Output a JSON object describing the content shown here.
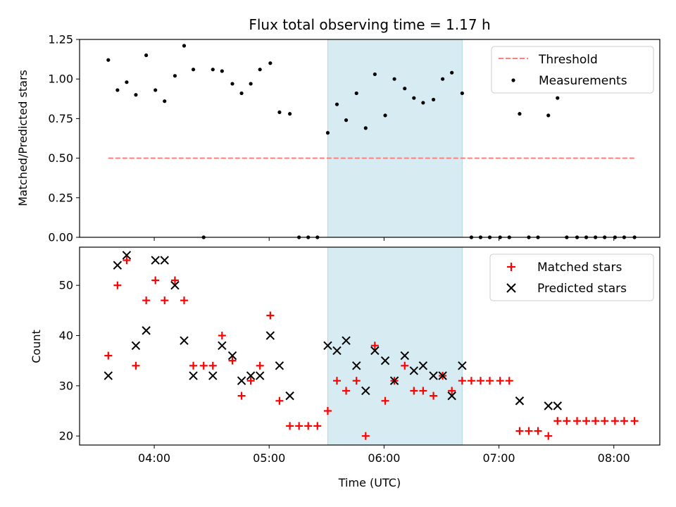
{
  "chart_data": {
    "type": "scatter",
    "title": "Flux total observing time = 1.17 h",
    "xlabel": "Time (UTC)",
    "x_tick_labels": [
      "04:00",
      "05:00",
      "06:00",
      "07:00",
      "08:00"
    ],
    "x_tick_hours": [
      4,
      5,
      6,
      7,
      8
    ],
    "xlim_hours": [
      3.35,
      8.4
    ],
    "shaded_interval_hours": [
      5.51,
      6.68
    ],
    "shade_color": "#add8e6",
    "top": {
      "ylabel": "Matched/Predicted stars",
      "ylim": [
        0,
        1.25
      ],
      "y_ticks": [
        0.0,
        0.25,
        0.5,
        0.75,
        1.0,
        1.25
      ],
      "y_tick_labels": [
        "0.00",
        "0.25",
        "0.50",
        "0.75",
        "1.00",
        "1.25"
      ],
      "threshold": {
        "name": "Threshold",
        "value": 0.5,
        "x_range_hours": [
          3.6,
          8.18
        ],
        "color": "#ff7f7f"
      },
      "measurements": {
        "name": "Measurements",
        "color": "#000000",
        "x_hours": [
          3.6,
          3.68,
          3.76,
          3.84,
          3.93,
          4.01,
          4.09,
          4.18,
          4.26,
          4.34,
          4.43,
          4.51,
          4.59,
          4.68,
          4.76,
          4.84,
          4.92,
          5.01,
          5.09,
          5.18,
          5.26,
          5.34,
          5.42,
          5.51,
          5.59,
          5.67,
          5.76,
          5.84,
          5.92,
          6.01,
          6.09,
          6.18,
          6.26,
          6.34,
          6.43,
          6.51,
          6.59,
          6.68,
          6.76,
          6.84,
          6.92,
          7.01,
          7.09,
          7.18,
          7.26,
          7.34,
          7.43,
          7.51,
          7.59,
          7.68,
          7.76,
          7.84,
          7.92,
          8.01,
          8.09,
          8.18
        ],
        "y": [
          1.12,
          0.93,
          0.98,
          0.9,
          1.15,
          0.93,
          0.86,
          1.02,
          1.21,
          1.06,
          0.0,
          1.06,
          1.05,
          0.97,
          0.91,
          0.97,
          1.06,
          1.1,
          0.79,
          0.78,
          0.0,
          0.0,
          0.0,
          0.66,
          0.84,
          0.74,
          0.91,
          0.69,
          1.03,
          0.77,
          1.0,
          0.94,
          0.88,
          0.85,
          0.87,
          1.0,
          1.04,
          0.91,
          0.0,
          0.0,
          0.0,
          0.0,
          0.0,
          0.78,
          0.0,
          0.0,
          0.77,
          0.88,
          0.0,
          0.0,
          0.0,
          0.0,
          0.0,
          0.0,
          0.0,
          0.0
        ]
      }
    },
    "bottom": {
      "ylabel": "Count",
      "ylim": [
        18.2,
        57.6
      ],
      "y_ticks": [
        20,
        30,
        40,
        50
      ],
      "y_tick_labels": [
        "20",
        "30",
        "40",
        "50"
      ],
      "series": [
        {
          "name": "Matched stars",
          "marker": "plus",
          "color": "#ff0000",
          "x_hours": [
            3.6,
            3.68,
            3.76,
            3.84,
            3.93,
            4.01,
            4.09,
            4.18,
            4.26,
            4.34,
            4.43,
            4.51,
            4.59,
            4.68,
            4.76,
            4.84,
            4.92,
            5.01,
            5.09,
            5.18,
            5.26,
            5.34,
            5.42,
            5.51,
            5.59,
            5.67,
            5.76,
            5.84,
            5.92,
            6.01,
            6.09,
            6.18,
            6.26,
            6.34,
            6.43,
            6.51,
            6.59,
            6.68,
            6.76,
            6.84,
            6.92,
            7.01,
            7.09,
            7.18,
            7.26,
            7.34,
            7.43,
            7.51,
            7.59,
            7.68,
            7.76,
            7.84,
            7.92,
            8.01,
            8.09,
            8.18
          ],
          "values": [
            36,
            50,
            55,
            34,
            47,
            51,
            47,
            51,
            47,
            34,
            34,
            34,
            40,
            35,
            28,
            31,
            34,
            44,
            27,
            22,
            22,
            22,
            22,
            25,
            31,
            29,
            31,
            20,
            38,
            27,
            31,
            34,
            29,
            29,
            28,
            32,
            29,
            31,
            31,
            31,
            31,
            31,
            31,
            21,
            21,
            21,
            20,
            23,
            23,
            23,
            23,
            23,
            23,
            23,
            23,
            23
          ]
        },
        {
          "name": "Predicted stars",
          "marker": "x",
          "color": "#000000",
          "x_hours": [
            3.6,
            3.68,
            3.76,
            3.84,
            3.93,
            4.01,
            4.09,
            4.18,
            4.26,
            4.34,
            4.51,
            4.59,
            4.68,
            4.76,
            4.84,
            4.92,
            5.01,
            5.09,
            5.18,
            5.51,
            5.59,
            5.67,
            5.76,
            5.84,
            5.92,
            6.01,
            6.09,
            6.18,
            6.26,
            6.34,
            6.43,
            6.51,
            6.59,
            6.68,
            7.18,
            7.43,
            7.51
          ],
          "values": [
            32,
            54,
            56,
            38,
            41,
            55,
            55,
            50,
            39,
            32,
            32,
            38,
            36,
            31,
            32,
            32,
            40,
            34,
            28,
            38,
            37,
            39,
            34,
            29,
            37,
            35,
            31,
            36,
            33,
            34,
            32,
            32,
            28,
            34,
            27,
            26,
            26
          ]
        }
      ]
    }
  }
}
